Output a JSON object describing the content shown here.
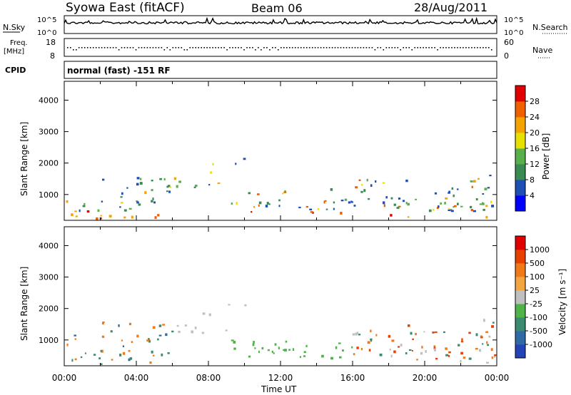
{
  "header": {
    "station": "Syowa East (fitACF)",
    "beam": "Beam 06",
    "date": "28/Aug/2011"
  },
  "top_panel": {
    "left_label": "N.Sky",
    "right_label": "N.Search",
    "right_ticks": [
      "10^5",
      "10^0"
    ],
    "left_ticks": [
      "10^5",
      "10^0"
    ]
  },
  "freq_panel": {
    "left_label_top": "Freq.",
    "left_label_bottom": "[MHz]",
    "left_ticks": [
      "18",
      "8"
    ],
    "right_label": "Nave",
    "right_ticks": [
      "60",
      "0"
    ]
  },
  "cpid_panel": {
    "label": "CPID",
    "mode_text": "normal (fast) -151 RF"
  },
  "chart_data": [
    {
      "type": "heatmap",
      "name": "power",
      "ylabel": "Slant Range [km]",
      "ylim": [
        180,
        4600
      ],
      "yticks": [
        "4000",
        "3000",
        "2000",
        "1000"
      ],
      "xlim": [
        0,
        24
      ],
      "colorbar_label": "Power [dB]",
      "colorbar_ticks": [
        "28",
        "24",
        "20",
        "16",
        "12",
        "8",
        "4"
      ],
      "colorbar_colors": [
        "#0000ff",
        "#1e4fb4",
        "#3a8b52",
        "#57b04c",
        "#e8e000",
        "#f5a300",
        "#f06000",
        "#e00000"
      ]
    },
    {
      "type": "heatmap",
      "name": "velocity",
      "ylabel": "Slant Range [km]",
      "ylim": [
        180,
        4600
      ],
      "yticks": [
        "4000",
        "3000",
        "2000",
        "1000"
      ],
      "xlim": [
        0,
        24
      ],
      "xticks": [
        "00:00",
        "04:00",
        "08:00",
        "12:00",
        "16:00",
        "20:00",
        "00:00"
      ],
      "xlabel": "Time UT",
      "colorbar_label": "Velocity [m s⁻¹]",
      "colorbar_ticks": [
        "1000",
        "500",
        "100",
        "25",
        "-25",
        "-100",
        "-500",
        "-1000"
      ],
      "colorbar_colors": [
        "#2343b7",
        "#2f6aa6",
        "#3b8b70",
        "#4fb34a",
        "#c0c0c0",
        "#f2a540",
        "#f07a18",
        "#e84000",
        "#e00000"
      ]
    }
  ]
}
